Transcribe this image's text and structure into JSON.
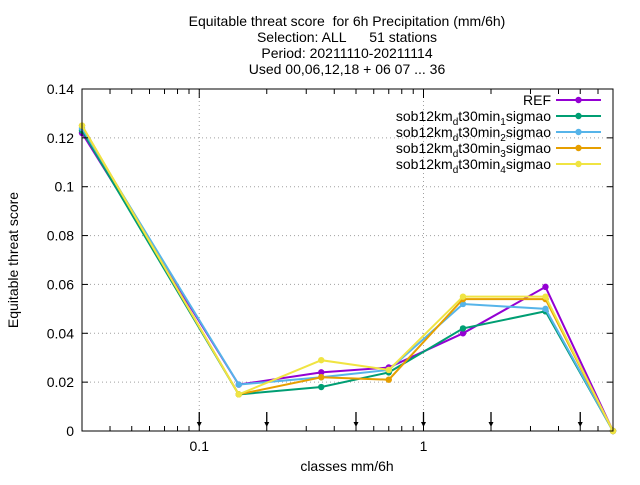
{
  "chart_data": {
    "type": "line",
    "title_lines": [
      "Equitable threat score  for 6h Precipitation (mm/6h)",
      "Selection: ALL      51 stations",
      "Period: 20211110-20211114",
      "Used 00,06,12,18 + 06 07 ... 36"
    ],
    "xlabel": "classes mm/6h",
    "ylabel": "Equitable threat score",
    "x_scale": "log",
    "xlim": [
      0.03,
      7
    ],
    "ylim": [
      0,
      0.14
    ],
    "x_ticks": [
      {
        "v": 0.1,
        "label": "0.1"
      },
      {
        "v": 1,
        "label": "1"
      }
    ],
    "y_ticks": [
      {
        "v": 0,
        "label": "0"
      },
      {
        "v": 0.02,
        "label": "0.02"
      },
      {
        "v": 0.04,
        "label": "0.04"
      },
      {
        "v": 0.06,
        "label": "0.06"
      },
      {
        "v": 0.08,
        "label": "0.08"
      },
      {
        "v": 0.1,
        "label": "0.1"
      },
      {
        "v": 0.12,
        "label": "0.12"
      },
      {
        "v": 0.14,
        "label": "0.14"
      }
    ],
    "class_markers": [
      0.1,
      0.2,
      0.5,
      1,
      2,
      5
    ],
    "grid": true,
    "legend_position": "top-right",
    "x": [
      0.03,
      0.15,
      0.35,
      0.7,
      1.5,
      3.5,
      7
    ],
    "series": [
      {
        "name": "REF",
        "color": "#9400d3",
        "values": [
          0.122,
          0.019,
          0.024,
          0.026,
          0.04,
          0.059,
          0.0
        ]
      },
      {
        "name": "sob12km",
        "sub": "d",
        "mid": "t30min",
        "sub2": "1",
        "tail": "sigmao",
        "color": "#009e73",
        "values": [
          0.123,
          0.015,
          0.018,
          0.024,
          0.042,
          0.049,
          0.0
        ]
      },
      {
        "name": "sob12km",
        "sub": "d",
        "mid": "t30min",
        "sub2": "2",
        "tail": "sigmao",
        "color": "#56b4e9",
        "values": [
          0.124,
          0.019,
          0.022,
          0.025,
          0.052,
          0.05,
          0.0
        ]
      },
      {
        "name": "sob12km",
        "sub": "d",
        "mid": "t30min",
        "sub2": "3",
        "tail": "sigmao",
        "color": "#e69f00",
        "values": [
          0.125,
          0.015,
          0.022,
          0.021,
          0.054,
          0.054,
          0.0
        ]
      },
      {
        "name": "sob12km",
        "sub": "d",
        "mid": "t30min",
        "sub2": "4",
        "tail": "sigmao",
        "color": "#f0e442",
        "values": [
          0.125,
          0.015,
          0.029,
          0.025,
          0.055,
          0.055,
          0.0
        ]
      }
    ]
  }
}
